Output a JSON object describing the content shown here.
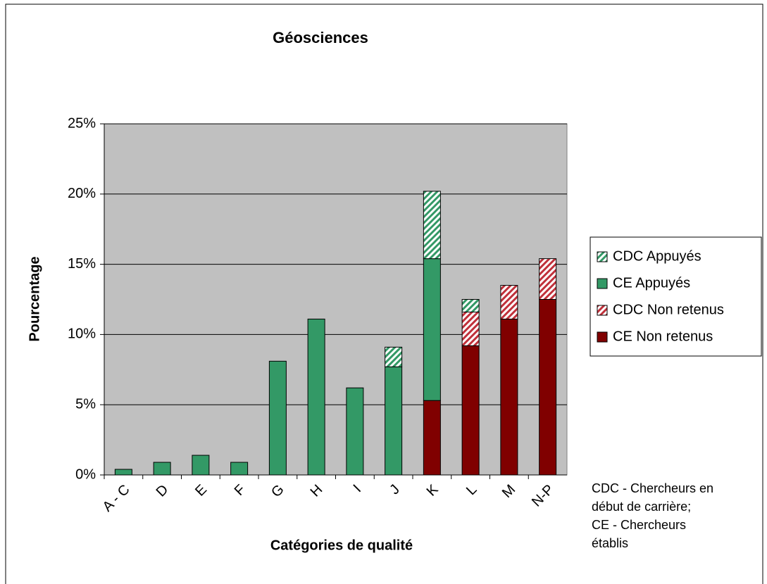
{
  "chart_data": {
    "type": "stacked-bar",
    "title": "Géosciences",
    "x_label": "Catégories de qualité",
    "y_label": "Pourcentage",
    "categories": [
      "A - C",
      "D",
      "E",
      "F",
      "G",
      "H",
      "I",
      "J",
      "K",
      "L",
      "M",
      "N-P"
    ],
    "series": [
      {
        "name": "CE Non retenus",
        "color": "#800000",
        "hatch": false,
        "values": [
          null,
          null,
          null,
          null,
          null,
          null,
          null,
          null,
          5.3,
          9.2,
          11.1,
          12.5
        ]
      },
      {
        "name": "CDC Non retenus",
        "color": "#c0303a",
        "hatch": true,
        "values": [
          null,
          null,
          null,
          null,
          null,
          null,
          null,
          null,
          null,
          2.4,
          2.4,
          2.9
        ]
      },
      {
        "name": "CE Appuyés",
        "color": "#339966",
        "hatch": false,
        "values": [
          0.4,
          0.9,
          1.4,
          0.9,
          8.1,
          11.1,
          6.2,
          7.7,
          10.1,
          null,
          null,
          null
        ]
      },
      {
        "name": "CDC Appuyés",
        "color": "#339966",
        "hatch": true,
        "values": [
          null,
          null,
          null,
          null,
          null,
          null,
          null,
          1.4,
          4.8,
          0.9,
          null,
          null
        ]
      }
    ],
    "ylim": [
      0,
      25
    ],
    "yticks": [
      {
        "value": 0,
        "label": "0%"
      },
      {
        "value": 5,
        "label": "5%"
      },
      {
        "value": 10,
        "label": "10%"
      },
      {
        "value": 15,
        "label": "15%"
      },
      {
        "value": 20,
        "label": "20%"
      },
      {
        "value": 25,
        "label": "25%"
      }
    ],
    "grid": true,
    "legend": "right",
    "note_lines": [
      "CDC - Chercheurs en",
      "début de carrière;",
      "CE - Chercheurs",
      "établis"
    ]
  }
}
